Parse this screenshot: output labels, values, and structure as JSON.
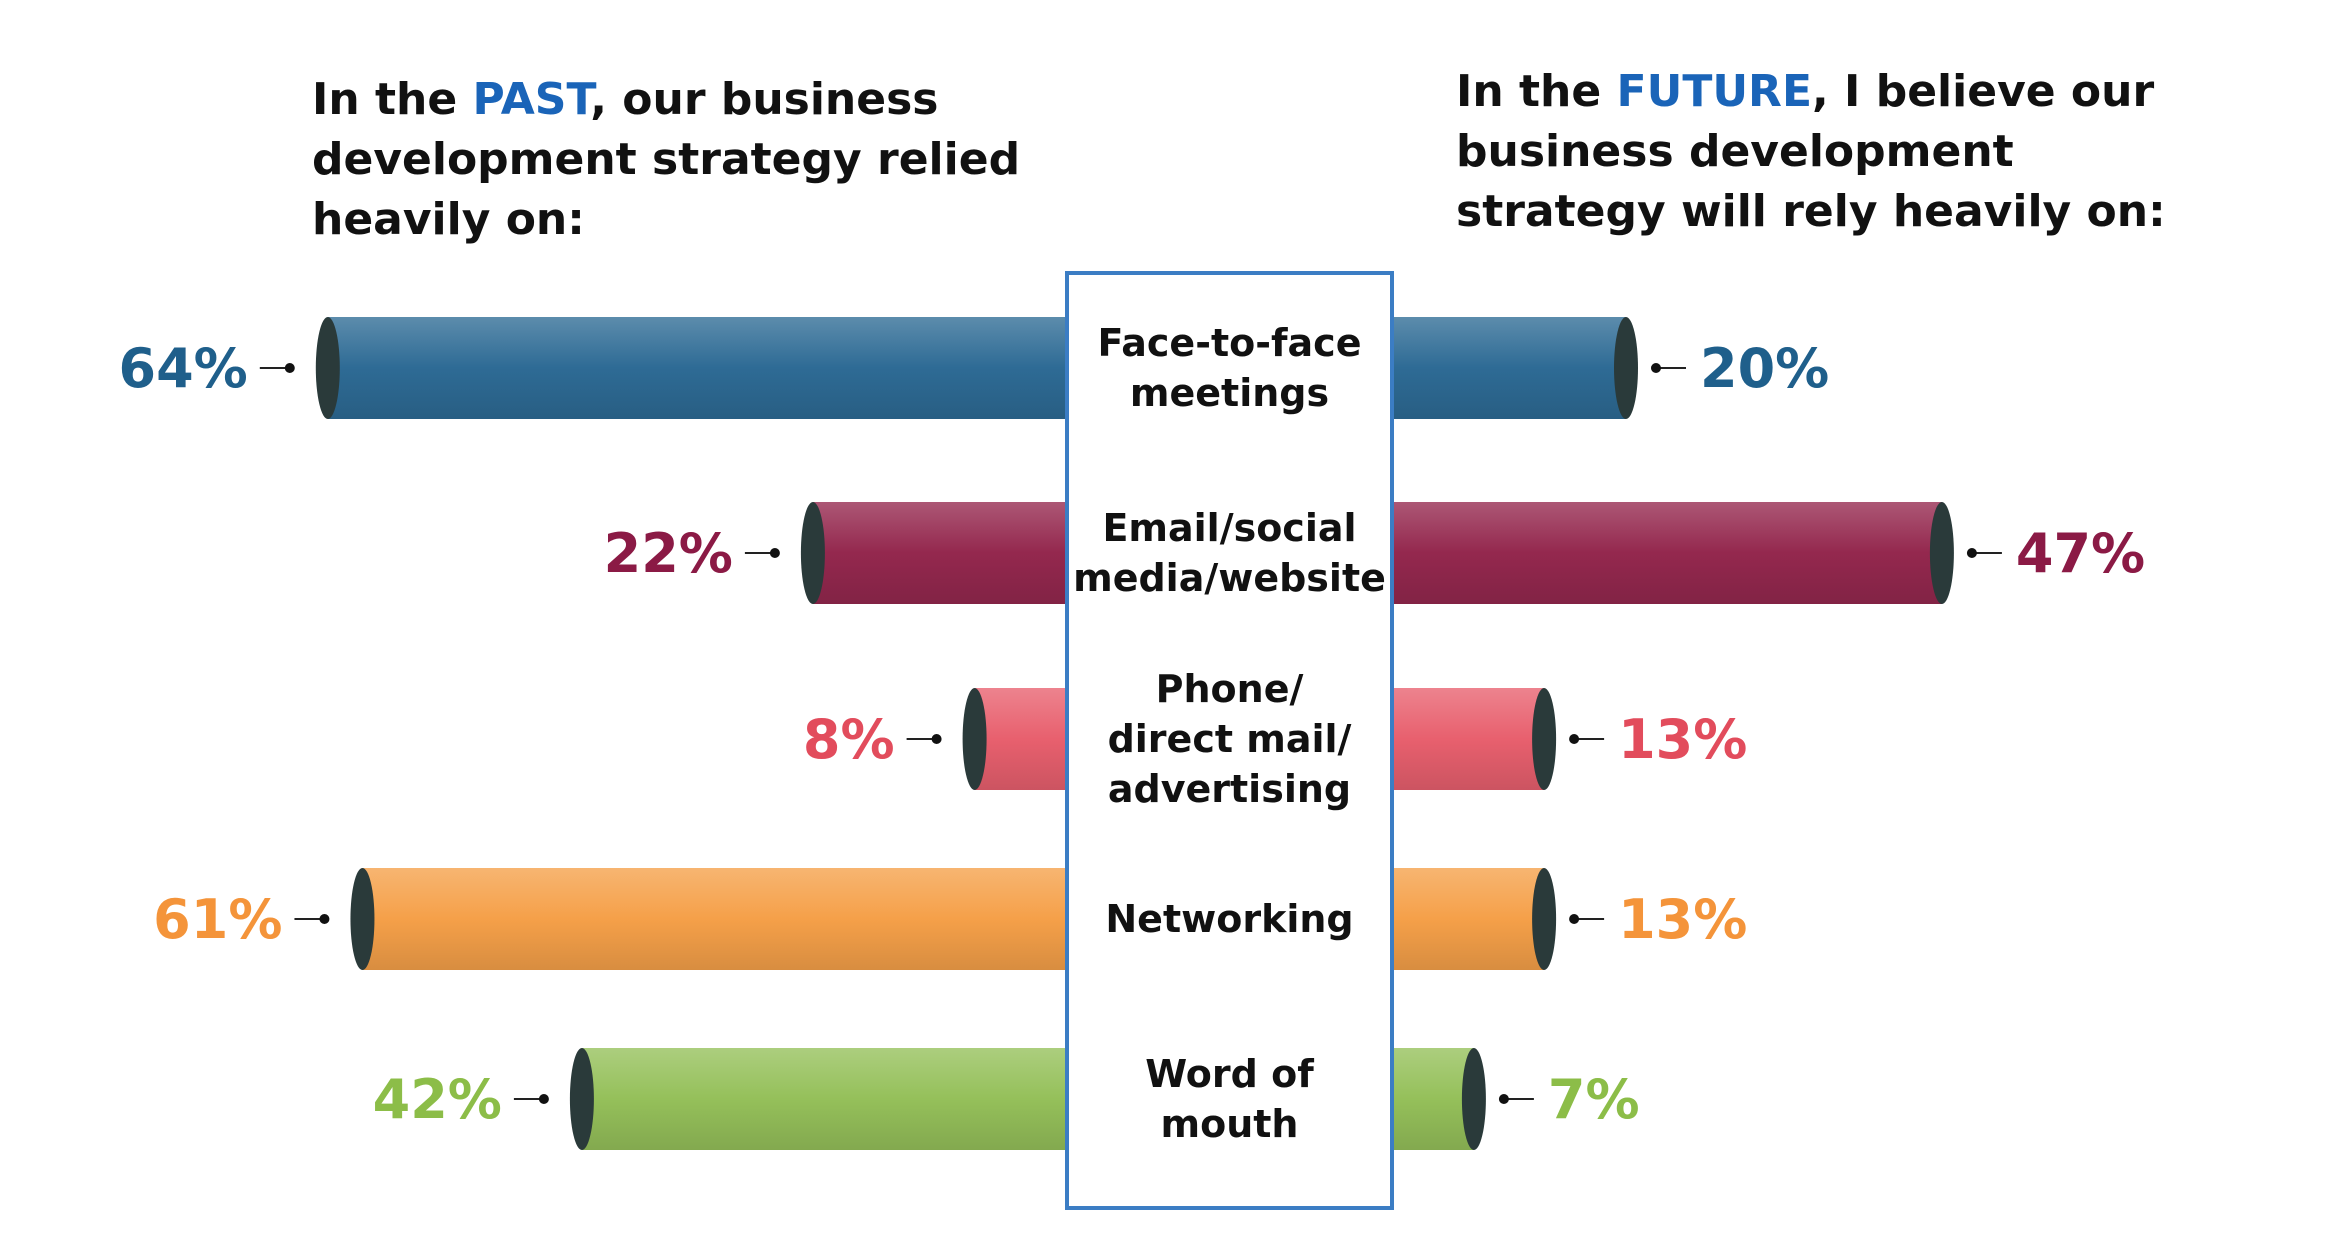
{
  "headings": {
    "past": {
      "before": "In the ",
      "highlight": "PAST",
      "after": ", our business development strategy relied heavily on:"
    },
    "future": {
      "before": "In the ",
      "highlight": "FUTURE",
      "after": ", I believe our business development strategy will rely heavily on:"
    }
  },
  "colors": {
    "highlight": "#1a64b8",
    "box_border": "#3b7dc4",
    "cap": "#2a3a3a"
  },
  "chart_data": {
    "type": "bar",
    "orientation": "horizontal-diverging",
    "categories": [
      {
        "lines": [
          "Face-to-face",
          "meetings"
        ]
      },
      {
        "lines": [
          "Email/social",
          "media/website"
        ]
      },
      {
        "lines": [
          "Phone/",
          "direct mail/",
          "advertising"
        ]
      },
      {
        "lines": [
          "Networking"
        ]
      },
      {
        "lines": [
          "Word of",
          "mouth"
        ]
      }
    ],
    "series": [
      {
        "values": [
          64,
          22,
          8,
          61,
          42
        ],
        "labels": [
          "64%",
          "22%",
          "8%",
          "61%",
          "42%"
        ]
      },
      {
        "values": [
          20,
          47,
          13,
          13,
          7
        ],
        "labels": [
          "20%",
          "47%",
          "13%",
          "13%",
          "7%"
        ]
      }
    ],
    "bar_colors": [
      "#2e6b95",
      "#94284e",
      "#e8606e",
      "#f5a049",
      "#95c05a"
    ],
    "label_colors": [
      "#1f5f8b",
      "#8b1a45",
      "#e24c5c",
      "#f4943a",
      "#8cbd48"
    ]
  }
}
